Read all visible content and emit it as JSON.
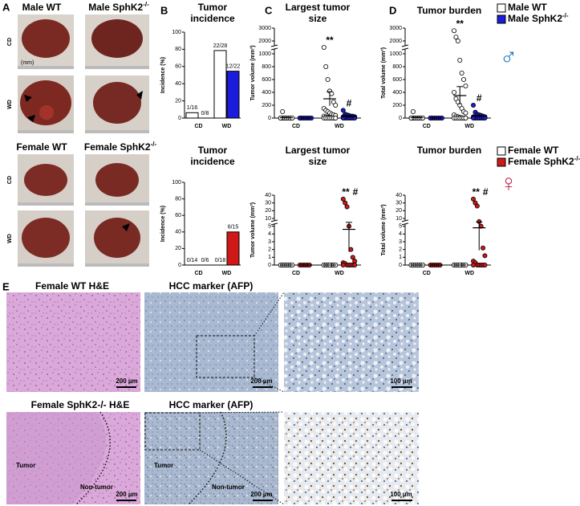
{
  "panel_a": {
    "letter": "A",
    "columns_male": [
      {
        "text": "Male WT"
      },
      {
        "text": "Male SphK2",
        "sup": "-/-"
      }
    ],
    "rows_male": [
      "CD",
      "WD"
    ],
    "ruler_label": "(mm)",
    "columns_female": [
      {
        "text": "Female WT"
      },
      {
        "text": "Female SphK2",
        "sup": "-/-"
      }
    ],
    "rows_female": [
      "CD",
      "WD"
    ]
  },
  "charts": [
    {
      "type": "bar",
      "letter": "B",
      "title": [
        "Tumor",
        "incidence"
      ],
      "ylabel": "Incidence (%)",
      "categories": [
        "CD",
        "WD"
      ],
      "ylim": [
        0,
        100
      ],
      "yticks": [
        0,
        20,
        40,
        60,
        80,
        100
      ],
      "series": [
        {
          "color": "#ffffff",
          "values": [
            6.25,
            78.57
          ],
          "value_labels": [
            "1/16",
            "22/28"
          ]
        },
        {
          "color": "#1c1cdc",
          "values": [
            0,
            54.55
          ],
          "value_labels": [
            "0/8",
            "12/22"
          ]
        }
      ]
    },
    {
      "type": "scatter",
      "letter": "C",
      "title": [
        "Largest tumor",
        "size"
      ],
      "ylabel": "Tumor volume (mm³)",
      "categories": [
        "CD",
        "WD"
      ],
      "ylim": [
        0,
        3000
      ],
      "yticks": [
        0,
        200,
        400,
        600,
        800,
        1000,
        2000,
        3000
      ],
      "series": [
        {
          "color": "#ffffff",
          "points": [
            [
              0,
              0,
              0,
              0,
              0,
              0,
              0,
              0,
              0,
              0,
              0,
              0,
              0,
              0,
              0,
              100
            ],
            [
              1500,
              800,
              600,
              420,
              380,
              250,
              200,
              150,
              120,
              100,
              80,
              60,
              50,
              40,
              30,
              20,
              15,
              10,
              5,
              0,
              0,
              0,
              0,
              0,
              0,
              0,
              0,
              0
            ]
          ],
          "mean": [
            5,
            300
          ],
          "sem": [
            5,
            110
          ]
        },
        {
          "color": "#1c1cdc",
          "points": [
            [
              0,
              0,
              0,
              0,
              0,
              0,
              0,
              0
            ],
            [
              120,
              60,
              50,
              40,
              30,
              30,
              20,
              20,
              15,
              10,
              10,
              10,
              5,
              5,
              5,
              0,
              0,
              0,
              0,
              0,
              0,
              0
            ]
          ],
          "mean": [
            0,
            20
          ],
          "sem": [
            0,
            7
          ]
        }
      ],
      "annotations": [
        {
          "text": "**",
          "category": 1,
          "series": 0
        },
        {
          "text": "#",
          "category": 1,
          "series": 1
        }
      ]
    },
    {
      "type": "scatter",
      "letter": "D",
      "title": [
        "Tumor burden"
      ],
      "ylabel": "Total volume (mm³)",
      "categories": [
        "CD",
        "WD"
      ],
      "ylim": [
        0,
        3000
      ],
      "yticks": [
        0,
        200,
        400,
        600,
        800,
        1000,
        2000,
        3000
      ],
      "series": [
        {
          "color": "#ffffff",
          "points": [
            [
              0,
              0,
              0,
              0,
              0,
              0,
              0,
              0,
              0,
              0,
              0,
              0,
              0,
              0,
              0,
              100
            ],
            [
              2800,
              2300,
              2000,
              900,
              700,
              600,
              500,
              400,
              300,
              250,
              200,
              150,
              100,
              80,
              50,
              30,
              20,
              10,
              5,
              0,
              0,
              0,
              0,
              0,
              0,
              0,
              0,
              0
            ]
          ],
          "mean": [
            6,
            350
          ],
          "sem": [
            6,
            140
          ]
        },
        {
          "color": "#1c1cdc",
          "points": [
            [
              0,
              0,
              0,
              0,
              0,
              0,
              0,
              0
            ],
            [
              200,
              90,
              60,
              50,
              40,
              30,
              20,
              20,
              15,
              10,
              10,
              10,
              5,
              5,
              5,
              0,
              0,
              0,
              0,
              0,
              0,
              0
            ]
          ],
          "mean": [
            0,
            30
          ],
          "sem": [
            0,
            10
          ]
        }
      ],
      "annotations": [
        {
          "text": "**",
          "category": 1,
          "series": 0
        },
        {
          "text": "#",
          "category": 1,
          "series": 1
        }
      ]
    },
    {
      "type": "bar",
      "title": [
        "Tumor",
        "incidence"
      ],
      "ylabel": "Incidence (%)",
      "categories": [
        "CD",
        "WD"
      ],
      "ylim": [
        0,
        100
      ],
      "yticks": [
        0,
        20,
        40,
        60,
        80,
        100
      ],
      "series": [
        {
          "color": "#ffffff",
          "values": [
            0,
            0
          ],
          "value_labels": [
            "0/14",
            "0/18"
          ]
        },
        {
          "color": "#d01818",
          "values": [
            0,
            40
          ],
          "value_labels": [
            "0/6",
            "6/15"
          ]
        }
      ]
    },
    {
      "type": "scatter",
      "title": [
        "Largest tumor",
        "size"
      ],
      "ylabel": "Tumor volume (mm³)",
      "categories": [
        "CD",
        "WD"
      ],
      "ylim": [
        0,
        40
      ],
      "yticks": [
        0,
        1,
        2,
        3,
        4,
        5,
        10,
        20,
        30,
        40
      ],
      "series": [
        {
          "color": "#ffffff",
          "points": [
            [
              0,
              0,
              0,
              0,
              0,
              0,
              0,
              0,
              0,
              0,
              0,
              0,
              0,
              0
            ],
            [
              0,
              0,
              0,
              0,
              0,
              0,
              0,
              0,
              0,
              0,
              0,
              0,
              0,
              0,
              0,
              0,
              0,
              0
            ]
          ],
          "mean": [
            0,
            0
          ],
          "sem": [
            0,
            0
          ]
        },
        {
          "color": "#d01818",
          "points": [
            [
              0,
              0,
              0,
              0,
              0,
              0
            ],
            [
              35,
              30,
              25,
              5,
              2,
              1,
              0.5,
              0.3,
              0.2,
              0,
              0,
              0,
              0,
              0,
              0
            ]
          ],
          "mean": [
            0,
            4.6
          ],
          "sem": [
            0,
            2.9
          ]
        }
      ],
      "annotations": [
        {
          "text": "**",
          "category": 1,
          "series": 1
        },
        {
          "text": "#",
          "category": 1,
          "series": 1
        }
      ]
    },
    {
      "type": "scatter",
      "title": [
        "Tumor burden"
      ],
      "ylabel": "Total volume (mm³)",
      "categories": [
        "CD",
        "WD"
      ],
      "ylim": [
        0,
        40
      ],
      "yticks": [
        0,
        1,
        2,
        3,
        4,
        5,
        10,
        20,
        30,
        40
      ],
      "series": [
        {
          "color": "#ffffff",
          "points": [
            [
              0,
              0,
              0,
              0,
              0,
              0,
              0,
              0,
              0,
              0,
              0,
              0,
              0,
              0
            ],
            [
              0,
              0,
              0,
              0,
              0,
              0,
              0,
              0,
              0,
              0,
              0,
              0,
              0,
              0,
              0,
              0,
              0,
              0
            ]
          ],
          "mean": [
            0,
            0
          ],
          "sem": [
            0,
            0
          ]
        },
        {
          "color": "#d01818",
          "points": [
            [
              0,
              0,
              0,
              0,
              0,
              0
            ],
            [
              35,
              30,
              26,
              8,
              5,
              2.2,
              1.2,
              0.5,
              0.3,
              0,
              0,
              0,
              0,
              0,
              0
            ]
          ],
          "mean": [
            0,
            4.8
          ],
          "sem": [
            0,
            2.9
          ]
        }
      ],
      "annotations": [
        {
          "text": "**",
          "category": 1,
          "series": 1
        },
        {
          "text": "#",
          "category": 1,
          "series": 1
        }
      ]
    }
  ],
  "legends": [
    {
      "entries": [
        {
          "name": "Male WT",
          "color": "#ffffff"
        },
        {
          "name": "Male SphK2",
          "sup": "-/-",
          "color": "#1c1cdc"
        }
      ],
      "symbol": "♂",
      "symbol_color": "#1a7bbf"
    },
    {
      "entries": [
        {
          "name": "Female WT",
          "color": "#ffffff"
        },
        {
          "name": "Female SphK2",
          "sup": "-/-",
          "color": "#d01818"
        }
      ],
      "symbol": "♀",
      "symbol_color": "#c0335a"
    }
  ],
  "panel_e": {
    "letter": "E",
    "rows": [
      {
        "labels": [
          "Female WT H&E",
          "HCC marker (AFP)"
        ],
        "scale_bars": [
          "200 µm",
          "200 µm",
          "100 µm"
        ]
      },
      {
        "labels": [
          "Female SphK2-/- H&E",
          "HCC marker (AFP)"
        ],
        "scale_bars": [
          "200 µm",
          "200 µm",
          "100 µm"
        ],
        "regions": [
          [
            "Tumor",
            "Non-tumor"
          ],
          [
            "Tumor",
            "Non-tumor"
          ]
        ]
      }
    ]
  }
}
